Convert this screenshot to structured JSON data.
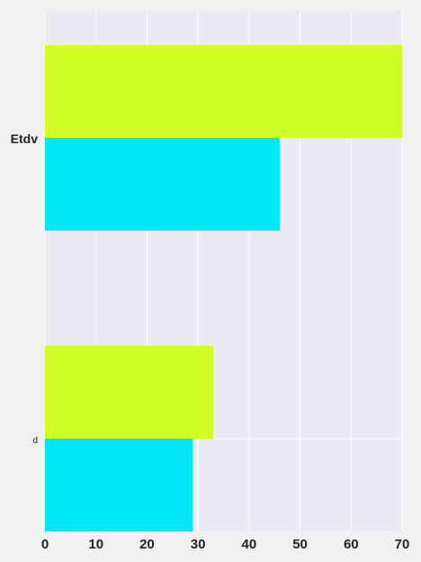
{
  "chart_data": {
    "type": "bar",
    "orientation": "horizontal",
    "categories": [
      "Etdv",
      "d"
    ],
    "series": [
      {
        "values": [
          70,
          33
        ],
        "color": "#cfff24"
      },
      {
        "values": [
          46,
          29
        ],
        "color": "#00e8f8"
      }
    ],
    "xlim": [
      0,
      70
    ],
    "x_ticks": [
      "0",
      "10",
      "20",
      "30",
      "40",
      "50",
      "60",
      "70"
    ],
    "grid": true,
    "background_color": "#eaeaf2",
    "grid_color": "#ffffff",
    "page_color": "#f0f0f0"
  }
}
